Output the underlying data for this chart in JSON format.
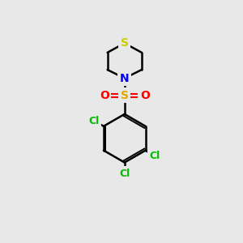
{
  "background_color": "#e8e8e8",
  "atom_colors": {
    "S_thiazine": "#cccc00",
    "N": "#0000ff",
    "S_sulfone": "#ddaa00",
    "O": "#ff0000",
    "Cl": "#00bb00",
    "C": "#000000"
  },
  "figsize": [
    3.0,
    3.0
  ],
  "dpi": 100,
  "xlim": [
    0,
    10
  ],
  "ylim": [
    0,
    12
  ]
}
